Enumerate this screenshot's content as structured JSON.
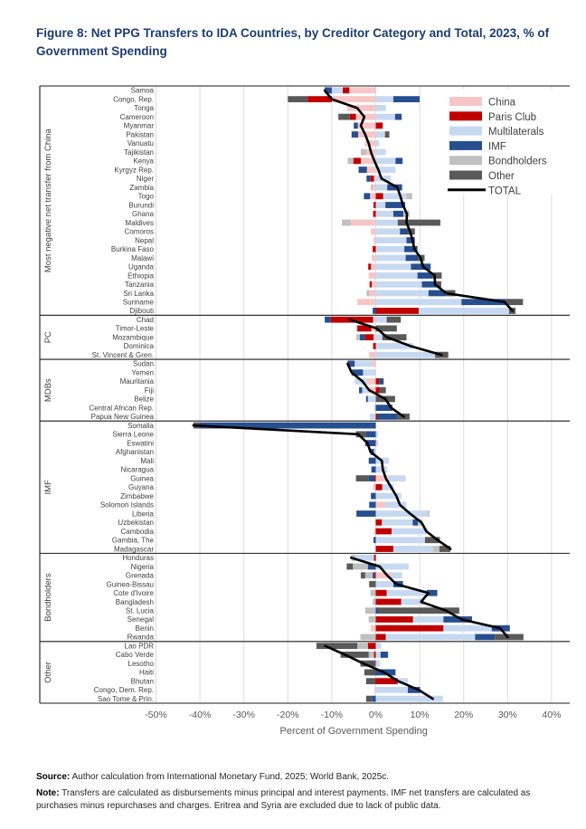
{
  "header": {
    "title": "Figure 8:  Net PPG Transfers to IDA Countries, by Creditor Category and Total, 2023, % of Government Spending"
  },
  "footer": {
    "source_label": "Source:",
    "source_text": " Author calculation from International Monetary Fund, 2025; World Bank, 2025c.",
    "note_label": "Note:",
    "note_text": " Transfers are calculated as disbursements minus principal and interest payments. IMF net transfers are calculated as purchases minus repurchases and charges. Eritrea and Syria are excluded due to lack of public data."
  },
  "chart_data": {
    "type": "bar",
    "orientation": "horizontal-stacked",
    "xlabel": "Percent of Government Spending",
    "axis": {
      "ticks": [
        -50,
        -40,
        -30,
        -20,
        -10,
        0,
        10,
        20,
        30,
        40
      ],
      "range": [
        -50,
        40
      ],
      "grid": true
    },
    "series_order": [
      "china",
      "paris_club",
      "multilaterals",
      "imf",
      "bondholders",
      "other"
    ],
    "legend": [
      {
        "id": "china",
        "label": "China",
        "color": "#F6C6C6",
        "type": "box"
      },
      {
        "id": "paris_club",
        "label": "Paris Club",
        "color": "#C00000",
        "type": "box"
      },
      {
        "id": "multilaterals",
        "label": "Multilaterals",
        "color": "#C7D9F1",
        "type": "box"
      },
      {
        "id": "imf",
        "label": "IMF",
        "color": "#274F8F",
        "type": "box"
      },
      {
        "id": "bondholders",
        "label": "Bondholders",
        "color": "#C0C0C0",
        "type": "box"
      },
      {
        "id": "other",
        "label": "Other",
        "color": "#595959",
        "type": "box"
      },
      {
        "id": "total",
        "label": "TOTAL",
        "color": "#000000",
        "type": "line"
      }
    ],
    "groups": [
      {
        "label": "Most negative net transfer from China",
        "countries": [
          {
            "name": "Samoa",
            "values": {
              "china": -6.0,
              "paris_club": -1.5,
              "multilaterals": -2.5,
              "imf": -1.6
            },
            "total": -11.6
          },
          {
            "name": "Congo, Rep.",
            "values": {
              "china": -10.0,
              "paris_club": -5.5,
              "other": -4.5,
              "multilaterals": 4.0,
              "imf": 6.0
            },
            "total": -10.0
          },
          {
            "name": "Tonga",
            "values": {
              "china": -6.5,
              "multilaterals": 2.3
            },
            "total": -4.2
          },
          {
            "name": "Cameroon",
            "values": {
              "china": -4.5,
              "paris_club": -1.4,
              "other": -2.6,
              "multilaterals": 4.4,
              "imf": 1.5
            },
            "total": -2.6
          },
          {
            "name": "Myanmar",
            "values": {
              "china": -4.1,
              "imf": -0.9,
              "paris_club": 1.6
            },
            "total": -3.4
          },
          {
            "name": "Pakistan",
            "values": {
              "china": -4.0,
              "imf": -1.5,
              "multilaterals": 2.1,
              "other": 1.0
            },
            "total": -2.4
          },
          {
            "name": "Vanuatu",
            "values": {
              "china": -2.4,
              "multilaterals": 0.8
            },
            "total": -1.6
          },
          {
            "name": "Tajikistan",
            "values": {
              "china": -2.1,
              "bondholders": -1.3,
              "multilaterals": 2.3
            },
            "total": -1.1
          },
          {
            "name": "Kenya",
            "values": {
              "china": -3.4,
              "paris_club": -1.7,
              "bondholders": -1.3,
              "multilaterals": 4.5,
              "imf": 1.6
            },
            "total": -0.3
          },
          {
            "name": "Kyrgyz Rep.",
            "values": {
              "china": -2.0,
              "imf": -1.9,
              "multilaterals": 4.5
            },
            "total": 0.6
          },
          {
            "name": "Niger",
            "values": {
              "china": -0.4,
              "paris_club": -0.8,
              "imf": -0.9,
              "multilaterals": 3.4
            },
            "total": 1.3
          },
          {
            "name": "Zambia",
            "values": {
              "china": -0.7,
              "bondholders": -0.4,
              "multilaterals": 2.6,
              "imf": 3.4
            },
            "total": 4.9
          },
          {
            "name": "Togo",
            "values": {
              "china": -1.3,
              "imf": -1.4,
              "paris_club": 1.7,
              "multilaterals": 5.3,
              "bondholders": 1.3
            },
            "total": 5.6
          },
          {
            "name": "Burundi",
            "values": {
              "paris_club": -0.5,
              "multilaterals": 2.2,
              "imf": 4.5
            },
            "total": 6.2
          },
          {
            "name": "Ghana",
            "values": {
              "paris_club": -0.6,
              "multilaterals": 4.0,
              "imf": 2.3,
              "bondholders": 1.4
            },
            "total": 7.1
          },
          {
            "name": "Maldives",
            "values": {
              "china": -5.6,
              "bondholders": -2.1,
              "multilaterals": 5.0,
              "other": 9.7
            },
            "total": 7.0
          },
          {
            "name": "Comoros",
            "values": {
              "china": -1.1,
              "multilaterals": 5.5,
              "imf": 1.8,
              "other": 1.6
            },
            "total": 7.8
          },
          {
            "name": "Nepal",
            "values": {
              "china": -0.5,
              "multilaterals": 7.0,
              "imf": 1.9
            },
            "total": 8.4
          },
          {
            "name": "Burkina Faso",
            "values": {
              "paris_club": -0.7,
              "multilaterals": 6.5,
              "imf": 3.0
            },
            "total": 8.8
          },
          {
            "name": "Malawi",
            "values": {
              "china": -0.9,
              "multilaterals": 6.8,
              "imf": 2.8,
              "other": 1.5
            },
            "total": 10.2
          },
          {
            "name": "Uganda",
            "values": {
              "china": -1.1,
              "paris_club": -0.6,
              "multilaterals": 8.0,
              "imf": 4.5
            },
            "total": 10.8
          },
          {
            "name": "Ethiopia",
            "values": {
              "china": -1.6,
              "multilaterals": 9.5,
              "imf": 3.5,
              "other": 2.0
            },
            "total": 13.4
          },
          {
            "name": "Tanzania",
            "values": {
              "china": -0.9,
              "paris_club": -0.5,
              "multilaterals": 10.5,
              "imf": 3.4,
              "other": 1.0
            },
            "total": 13.5
          },
          {
            "name": "Sri Lanka",
            "values": {
              "china": -1.5,
              "bondholders": -0.6,
              "multilaterals": 12.0,
              "imf": 4.0,
              "other": 2.1
            },
            "total": 16.0
          },
          {
            "name": "Suriname",
            "values": {
              "china": -4.2,
              "multilaterals": 19.5,
              "imf": 10.0,
              "other": 4.0
            },
            "total": 29.3
          },
          {
            "name": "Djibouti",
            "values": {
              "imf": -0.7,
              "paris_club": 9.8,
              "multilaterals": 20.5,
              "other": 1.5
            },
            "total": 31.1
          }
        ]
      },
      {
        "label": "PC",
        "countries": [
          {
            "name": "Chad",
            "values": {
              "china": -0.6,
              "paris_club": -9.6,
              "imf": -1.4,
              "multilaterals": 2.5,
              "other": 3.2
            },
            "total": -5.9
          },
          {
            "name": "Timor-Leste",
            "values": {
              "china": -1.0,
              "paris_club": -3.2,
              "multilaterals": -0.4,
              "other": 4.8
            },
            "total": 0.2
          },
          {
            "name": "Mozambique",
            "values": {
              "china": -0.5,
              "paris_club": -2.0,
              "imf": -1.1,
              "bondholders": -0.8,
              "multilaterals": 1.5,
              "other": 5.5
            },
            "total": 2.6
          },
          {
            "name": "Dominica",
            "values": {
              "paris_club": -0.6,
              "multilaterals": 8.5
            },
            "total": 7.9
          },
          {
            "name": "St. Vincent & Gren.",
            "values": {
              "china": -1.5,
              "multilaterals": 13.5,
              "other": 3.0
            },
            "total": 15.0
          }
        ]
      },
      {
        "label": "MDBs",
        "countries": [
          {
            "name": "Sudan",
            "values": {
              "china": -0.8,
              "multilaterals": -4.0,
              "imf": -1.6
            },
            "total": -6.4
          },
          {
            "name": "Yemen",
            "values": {
              "multilaterals": -2.9,
              "imf": -2.6
            },
            "total": -5.5
          },
          {
            "name": "Mauritania",
            "values": {
              "china": -2.0,
              "multilaterals": -2.8,
              "paris_club": 0.8,
              "imf": 1.0
            },
            "total": -3.0
          },
          {
            "name": "Fiji",
            "values": {
              "china": -1.6,
              "multilaterals": -1.5,
              "imf": -0.7,
              "paris_club": 0.9,
              "other": 1.4
            },
            "total": -1.5
          },
          {
            "name": "Belize",
            "values": {
              "multilaterals": -1.8,
              "imf": -0.4,
              "other": 4.4
            },
            "total": 2.2
          },
          {
            "name": "Central African Rep.",
            "values": {
              "multilaterals": -0.3,
              "imf": 3.8
            },
            "total": 3.5
          },
          {
            "name": "Papua New Guinea",
            "values": {
              "multilaterals": -1.3,
              "paris_club": 0.4,
              "imf": 4.6,
              "other": 2.7
            },
            "total": 6.4
          }
        ]
      },
      {
        "label": "IMF",
        "countries": [
          {
            "name": "Somalia",
            "values": {
              "imf": -40.0,
              "other": -1.5
            },
            "total": -41.5
          },
          {
            "name": "Sierra Leone",
            "values": {
              "imf": -2.3,
              "other": -2.2,
              "multilaterals": 0.5
            },
            "total": -4.0
          },
          {
            "name": "Eswatini",
            "values": {
              "imf": -2.4,
              "china": 0.5
            },
            "total": -1.9
          },
          {
            "name": "Afghanistan",
            "values": {
              "imf": -0.8,
              "multilaterals": -0.4
            },
            "total": -1.2
          },
          {
            "name": "Mali",
            "values": {
              "imf": -1.6,
              "multilaterals": 3.0
            },
            "total": 1.4
          },
          {
            "name": "Nicaragua",
            "values": {
              "imf": -1.0,
              "multilaterals": 2.6
            },
            "total": 1.6
          },
          {
            "name": "Guinea",
            "values": {
              "other": -2.8,
              "imf": -1.4,
              "paris_club": -0.3,
              "china": 2.7,
              "multilaterals": 4.1
            },
            "total": 2.3
          },
          {
            "name": "Guyana",
            "values": {
              "china": -0.6,
              "paris_club": 1.5,
              "multilaterals": 2.6
            },
            "total": 3.5
          },
          {
            "name": "Zimbabwe",
            "values": {
              "imf": -1.1,
              "multilaterals": 5.8
            },
            "total": 4.7
          },
          {
            "name": "Solomon Islands",
            "values": {
              "imf": -1.5,
              "china": 2.3,
              "multilaterals": 4.7
            },
            "total": 5.5
          },
          {
            "name": "Liberia",
            "values": {
              "imf": -4.4,
              "multilaterals": 11.8,
              "bondholders": 0.4
            },
            "total": 7.8
          },
          {
            "name": "Uzbekistan",
            "values": {
              "paris_club": 1.4,
              "multilaterals": 7.0,
              "imf": 1.2,
              "bondholders": 1.0
            },
            "total": 10.4
          },
          {
            "name": "Cambodia",
            "values": {
              "china": -0.3,
              "paris_club": 3.6,
              "multilaterals": 8.2
            },
            "total": 11.5
          },
          {
            "name": "Gambia, The",
            "values": {
              "imf": -0.5,
              "multilaterals": 11.2,
              "other": 3.4
            },
            "total": 14.1
          },
          {
            "name": "Madagascar",
            "values": {
              "paris_club": 4.0,
              "multilaterals": 9.0,
              "bondholders": 1.5,
              "other": 2.5
            },
            "total": 17.0
          }
        ]
      },
      {
        "label": "Bondholders",
        "countries": [
          {
            "name": "Honduras",
            "values": {
              "paris_club": -0.4,
              "multilaterals": -4.2,
              "bondholders": -1.0
            },
            "total": -5.6
          },
          {
            "name": "Nigeria",
            "values": {
              "imf": -1.8,
              "bondholders": -3.4,
              "other": -1.4,
              "multilaterals": 7.5
            },
            "total": 0.9
          },
          {
            "name": "Grenada",
            "values": {
              "paris_club": -0.2,
              "imf": -0.5,
              "bondholders": -1.7,
              "other": -1.0,
              "china": 3.6,
              "multilaterals": 2.4
            },
            "total": 2.6
          },
          {
            "name": "Guinea-Bissau",
            "values": {
              "other": -1.5,
              "multilaterals": 4.0,
              "imf": 2.2
            },
            "total": 4.7
          },
          {
            "name": "Cote d'Ivoire",
            "values": {
              "bondholders": -1.2,
              "paris_club": 2.5,
              "multilaterals": 9.1,
              "imf": 2.4
            },
            "total": 12.0
          },
          {
            "name": "Bangladesh",
            "values": {
              "bondholders": -0.7,
              "paris_club": 5.8,
              "multilaterals": 5.2
            },
            "total": 10.3
          },
          {
            "name": "St. Lucia",
            "values": {
              "bondholders": -2.4,
              "imf": 0.6,
              "other": 18.4
            },
            "total": 16.0
          },
          {
            "name": "Senegal",
            "values": {
              "bondholders": -1.6,
              "paris_club": 8.5,
              "multilaterals": 6.9,
              "imf": 6.5
            },
            "total": 19.5
          },
          {
            "name": "Benin",
            "values": {
              "china": -1.1,
              "paris_club": 15.4,
              "multilaterals": 11.0,
              "imf": 4.1
            },
            "total": 28.3
          },
          {
            "name": "Rwanda",
            "values": {
              "bondholders": -3.5,
              "paris_club": 2.3,
              "multilaterals": 20.3,
              "imf": 4.5,
              "other": 6.5
            },
            "total": 30.0
          }
        ]
      },
      {
        "label": "Other",
        "countries": [
          {
            "name": "Lao PDR",
            "values": {
              "paris_club": -1.8,
              "bondholders": -2.4,
              "other": -9.3,
              "multilaterals": 1.2
            },
            "total": -11.5
          },
          {
            "name": "Cabo Verde",
            "values": {
              "paris_club": -0.4,
              "bondholders": -1.2,
              "other": -6.4,
              "multilaterals": 1.1,
              "imf": 1.7
            },
            "total": -7.0
          },
          {
            "name": "Lesotho",
            "values": {
              "other": -3.5,
              "china": 0.4,
              "multilaterals": 0.6
            },
            "total": -2.8
          },
          {
            "name": "Haiti",
            "values": {
              "other": -2.6,
              "imf": 4.5
            },
            "total": 1.9
          },
          {
            "name": "Bhutan",
            "values": {
              "other": -2.2,
              "paris_club": 5.0,
              "multilaterals": 2.3
            },
            "total": 5.1
          },
          {
            "name": "Congo, Dem. Rep.",
            "values": {
              "china": -0.3,
              "multilaterals": 7.3,
              "imf": 2.8
            },
            "total": 9.8
          },
          {
            "name": "Sao Tome & Prin.",
            "values": {
              "imf": -0.8,
              "other": -1.4,
              "multilaterals": 15.3
            },
            "total": 13.0
          }
        ]
      }
    ]
  }
}
